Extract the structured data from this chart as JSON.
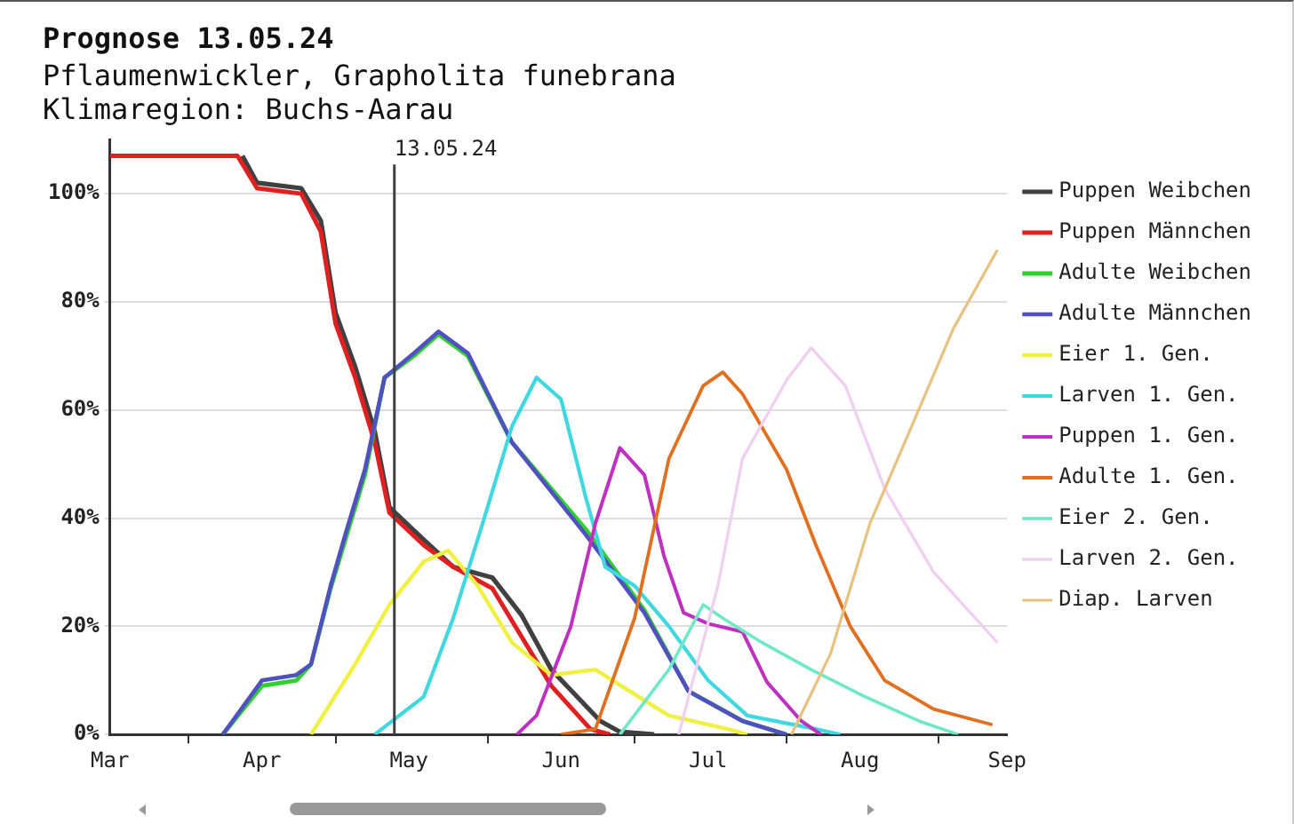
{
  "chart_data": {
    "type": "line",
    "title": "Prognose 13.05.24",
    "subtitle": "Pflaumenwickler, Grapholita funebrana\nKlimaregion: Buchs-Aarau",
    "xlim": [
      "--03-16",
      "--09-15"
    ],
    "xticks": [
      {
        "value": "--03-16",
        "label": "Mar"
      },
      {
        "value": "--04-01",
        "label": null
      },
      {
        "value": "--04-16",
        "label": "Apr"
      },
      {
        "value": "--05-01",
        "label": null
      },
      {
        "value": "--05-16",
        "label": "May"
      },
      {
        "value": "--06-01",
        "label": null
      },
      {
        "value": "--06-16",
        "label": "Jun"
      },
      {
        "value": "--07-01",
        "label": null
      },
      {
        "value": "--07-16",
        "label": "Jul"
      },
      {
        "value": "--08-01",
        "label": null
      },
      {
        "value": "--08-16",
        "label": "Aug"
      },
      {
        "value": "--09-01",
        "label": null
      },
      {
        "value": "--09-15",
        "label": "Sep"
      }
    ],
    "ylim": [
      0,
      110
    ],
    "yticks": [
      {
        "value": 0,
        "label": "0%"
      },
      {
        "value": 20,
        "label": "20%"
      },
      {
        "value": 40,
        "label": "40%"
      },
      {
        "value": 60,
        "label": "60%"
      },
      {
        "value": 80,
        "label": "80%"
      },
      {
        "value": 100,
        "label": "100%"
      }
    ],
    "grid": "y",
    "legend": "right",
    "marker": "none",
    "line_style": "solid",
    "ref_lines": [
      {
        "axis": "x",
        "value": "--05-13",
        "label": "13.05.24",
        "color": "#404040"
      }
    ],
    "series": [
      {
        "name": "Puppen Weibchen",
        "color": "#404040",
        "x": [
          "--04-12",
          "--04-15",
          "--04-24",
          "--04-28",
          "--05-01",
          "--05-05",
          "--05-09",
          "--05-12",
          "--05-19",
          "--05-25",
          "--06-02",
          "--06-08",
          "--06-14",
          "--06-24",
          "--06-28",
          "--07-05"
        ],
        "values": [
          107,
          102,
          101,
          95,
          78,
          68,
          56,
          42,
          36,
          31,
          29,
          22,
          12,
          2.5,
          0.5,
          0
        ]
      },
      {
        "name": "Puppen Männchen",
        "color": "#e02020",
        "x": [
          "--03-16",
          "--04-11",
          "--04-15",
          "--04-24",
          "--04-28",
          "--05-01",
          "--05-05",
          "--05-09",
          "--05-12",
          "--05-19",
          "--05-25",
          "--06-02",
          "--06-08",
          "--06-14",
          "--06-22",
          "--06-26"
        ],
        "values": [
          107,
          107,
          101,
          100,
          93,
          76,
          66,
          54,
          41,
          35,
          31,
          27,
          18,
          9,
          1,
          0
        ]
      },
      {
        "name": "Adulte Weibchen",
        "color": "#30d030",
        "x": [
          "--04-08",
          "--04-16",
          "--04-23",
          "--04-26",
          "--04-30",
          "--05-03",
          "--05-07",
          "--05-11",
          "--05-17",
          "--05-22",
          "--05-28",
          "--06-06",
          "--06-21",
          "--07-03",
          "--07-12",
          "--07-23",
          "--08-01"
        ],
        "values": [
          0,
          9,
          10,
          13,
          27,
          36,
          48,
          66,
          70,
          74,
          70,
          54,
          38,
          23,
          8,
          2.5,
          0
        ]
      },
      {
        "name": "Adulte Männchen",
        "color": "#5050c0",
        "x": [
          "--04-08",
          "--04-16",
          "--04-23",
          "--04-26",
          "--04-30",
          "--05-03",
          "--05-07",
          "--05-11",
          "--05-17",
          "--05-22",
          "--05-28",
          "--06-06",
          "--06-21",
          "--07-03",
          "--07-12",
          "--07-23",
          "--08-01"
        ],
        "values": [
          0,
          10,
          11,
          13,
          27.5,
          37,
          49,
          66,
          70.5,
          74.5,
          70.5,
          54,
          37,
          22.5,
          8,
          2.5,
          0
        ]
      },
      {
        "name": "Eier 1. Gen.",
        "color": "#f0f040",
        "x": [
          "--04-26",
          "--05-05",
          "--05-12",
          "--05-19",
          "--05-24",
          "--05-30",
          "--06-06",
          "--06-14",
          "--06-23",
          "--06-30",
          "--07-08",
          "--07-20",
          "--07-24"
        ],
        "values": [
          0,
          13,
          24,
          32,
          34,
          27.5,
          17,
          11,
          12,
          8,
          3.5,
          1,
          0
        ]
      },
      {
        "name": "Larven 1. Gen.",
        "color": "#40d8e0",
        "x": [
          "--05-09",
          "--05-19",
          "--05-25",
          "--05-31",
          "--06-06",
          "--06-11",
          "--06-16",
          "--06-21",
          "--06-25",
          "--07-01",
          "--07-08",
          "--07-16",
          "--07-24",
          "--08-07",
          "--08-12"
        ],
        "values": [
          0,
          7,
          21.5,
          39,
          57,
          66,
          62,
          44,
          31,
          27.5,
          20,
          10,
          3.5,
          1,
          0
        ]
      },
      {
        "name": "Puppen 1. Gen.",
        "color": "#c030c0",
        "x": [
          "--06-07",
          "--06-11",
          "--06-18",
          "--06-23",
          "--06-28",
          "--07-03",
          "--07-07",
          "--07-11",
          "--07-16",
          "--07-23",
          "--07-28",
          "--08-04",
          "--08-08"
        ],
        "values": [
          0,
          3.5,
          20,
          39,
          53,
          48,
          33,
          22.5,
          20.5,
          19,
          9.7,
          2.5,
          0
        ]
      },
      {
        "name": "Adulte 1. Gen.",
        "color": "#e07020",
        "x": [
          "--06-16",
          "--06-23",
          "--07-01",
          "--07-08",
          "--07-15",
          "--07-19",
          "--07-23",
          "--08-01",
          "--08-07",
          "--08-14",
          "--08-21",
          "--08-31",
          "--09-12"
        ],
        "values": [
          0,
          1,
          21.5,
          51,
          64.5,
          67,
          63,
          49,
          35,
          20,
          10,
          4.7,
          1.8
        ]
      },
      {
        "name": "Eier 2. Gen.",
        "color": "#70e8c8",
        "x": [
          "--06-28",
          "--07-08",
          "--07-15",
          "--07-19",
          "--07-27",
          "--08-06",
          "--08-17",
          "--08-28",
          "--09-05"
        ],
        "values": [
          0,
          12,
          24,
          21.5,
          17,
          12,
          7,
          2.5,
          0
        ]
      },
      {
        "name": "Larven 2. Gen.",
        "color": "#f0d0f0",
        "x": [
          "--07-10",
          "--07-18",
          "--07-23",
          "--08-01",
          "--08-06",
          "--08-13",
          "--08-21",
          "--08-31",
          "--09-13"
        ],
        "values": [
          0,
          27.5,
          51,
          65.5,
          71.5,
          64.5,
          45.5,
          30,
          17
        ]
      },
      {
        "name": "Diap. Larven",
        "color": "#e8c080",
        "x": [
          "--08-02",
          "--08-10",
          "--08-18",
          "--08-27",
          "--09-04",
          "--09-13"
        ],
        "values": [
          0,
          15,
          39,
          58,
          75,
          89.6
        ]
      }
    ]
  }
}
